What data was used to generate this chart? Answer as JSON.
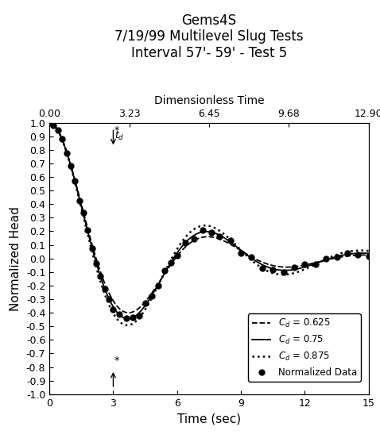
{
  "title": "Gems4S\n7/19/99 Multilevel Slug Tests\nInterval 57'- 59' - Test 5",
  "xlabel": "Time (sec)",
  "ylabel": "Normalized Head",
  "top_xlabel": "Dimensionless Time",
  "xlim": [
    0,
    15
  ],
  "ylim": [
    -1.0,
    1.0
  ],
  "top_xticks": [
    0.0,
    3.23,
    6.45,
    9.68,
    12.9
  ],
  "bottom_xticks": [
    0,
    3,
    6,
    9,
    12,
    15
  ],
  "yticks": [
    -1.0,
    -0.9,
    -0.8,
    -0.7,
    -0.6,
    -0.5,
    -0.4,
    -0.3,
    -0.2,
    -0.1,
    0.0,
    0.1,
    0.2,
    0.3,
    0.4,
    0.5,
    0.6,
    0.7,
    0.8,
    0.9,
    1.0
  ],
  "line_color": "black",
  "data_color": "black",
  "background_color": "white",
  "figsize": [
    4.78,
    5.52
  ],
  "dpi": 100
}
